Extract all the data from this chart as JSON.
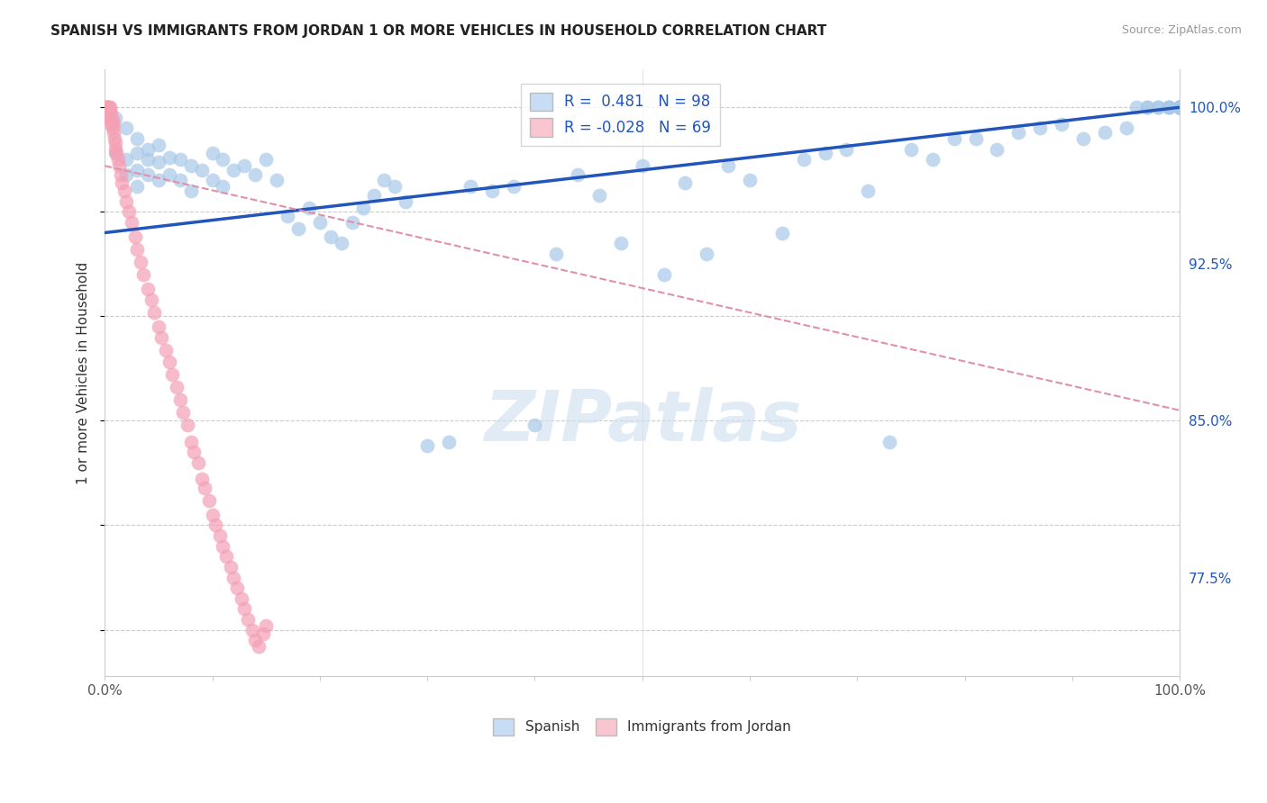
{
  "title": "SPANISH VS IMMIGRANTS FROM JORDAN 1 OR MORE VEHICLES IN HOUSEHOLD CORRELATION CHART",
  "source": "Source: ZipAtlas.com",
  "ylabel": "1 or more Vehicles in Household",
  "xlim": [
    0.0,
    1.0
  ],
  "ylim": [
    0.728,
    1.018
  ],
  "yticks": [
    0.775,
    0.85,
    0.925,
    1.0
  ],
  "ytick_labels": [
    "77.5%",
    "85.0%",
    "92.5%",
    "100.0%"
  ],
  "xticks": [
    0.0,
    0.1,
    0.2,
    0.3,
    0.4,
    0.5,
    0.6,
    0.7,
    0.8,
    0.9,
    1.0
  ],
  "xtick_labels": [
    "0.0%",
    "",
    "",
    "",
    "",
    "",
    "",
    "",
    "",
    "",
    "100.0%"
  ],
  "spanish_R": 0.481,
  "spanish_N": 98,
  "jordan_R": -0.028,
  "jordan_N": 69,
  "spanish_color": "#a8c8e8",
  "jordan_color": "#f4a0b5",
  "trendline_spanish_color": "#2255bb",
  "trendline_jordan_color": "#e090a8",
  "legend_box_color_spanish": "#c8ddf5",
  "legend_box_color_jordan": "#f9c5d0",
  "watermark_color": "#ccdff0",
  "spanish_x": [
    0.01,
    0.01,
    0.02,
    0.02,
    0.02,
    0.03,
    0.03,
    0.03,
    0.03,
    0.04,
    0.04,
    0.04,
    0.05,
    0.05,
    0.05,
    0.06,
    0.06,
    0.07,
    0.07,
    0.08,
    0.08,
    0.09,
    0.1,
    0.1,
    0.11,
    0.11,
    0.12,
    0.13,
    0.14,
    0.15,
    0.16,
    0.17,
    0.18,
    0.19,
    0.2,
    0.21,
    0.22,
    0.23,
    0.24,
    0.25,
    0.26,
    0.27,
    0.28,
    0.3,
    0.32,
    0.34,
    0.36,
    0.38,
    0.4,
    0.42,
    0.44,
    0.46,
    0.48,
    0.5,
    0.52,
    0.54,
    0.56,
    0.58,
    0.6,
    0.63,
    0.65,
    0.67,
    0.69,
    0.71,
    0.73,
    0.75,
    0.77,
    0.79,
    0.81,
    0.83,
    0.85,
    0.87,
    0.89,
    0.91,
    0.93,
    0.95,
    0.96,
    0.97,
    0.97,
    0.98,
    0.98,
    0.99,
    0.99,
    0.99,
    1.0,
    1.0,
    1.0,
    1.0,
    1.0,
    1.0,
    1.0,
    1.0,
    1.0,
    1.0,
    1.0,
    1.0,
    1.0,
    1.0
  ],
  "spanish_y": [
    0.978,
    0.995,
    0.975,
    0.99,
    0.968,
    0.985,
    0.978,
    0.97,
    0.962,
    0.98,
    0.975,
    0.968,
    0.982,
    0.974,
    0.965,
    0.976,
    0.968,
    0.975,
    0.965,
    0.972,
    0.96,
    0.97,
    0.978,
    0.965,
    0.975,
    0.962,
    0.97,
    0.972,
    0.968,
    0.975,
    0.965,
    0.948,
    0.942,
    0.952,
    0.945,
    0.938,
    0.935,
    0.945,
    0.952,
    0.958,
    0.965,
    0.962,
    0.955,
    0.838,
    0.84,
    0.962,
    0.96,
    0.962,
    0.848,
    0.93,
    0.968,
    0.958,
    0.935,
    0.972,
    0.92,
    0.964,
    0.93,
    0.972,
    0.965,
    0.94,
    0.975,
    0.978,
    0.98,
    0.96,
    0.84,
    0.98,
    0.975,
    0.985,
    0.985,
    0.98,
    0.988,
    0.99,
    0.992,
    0.985,
    0.988,
    0.99,
    1.0,
    1.0,
    1.0,
    1.0,
    1.0,
    1.0,
    1.0,
    1.0,
    1.0,
    1.0,
    1.0,
    1.0,
    1.0,
    1.0,
    1.0,
    1.0,
    1.0,
    1.0,
    1.0,
    1.0,
    1.0,
    1.0
  ],
  "jordan_x": [
    0.001,
    0.001,
    0.002,
    0.002,
    0.002,
    0.003,
    0.003,
    0.004,
    0.004,
    0.004,
    0.005,
    0.005,
    0.005,
    0.006,
    0.006,
    0.007,
    0.007,
    0.008,
    0.008,
    0.009,
    0.01,
    0.01,
    0.011,
    0.012,
    0.013,
    0.015,
    0.016,
    0.018,
    0.02,
    0.022,
    0.025,
    0.028,
    0.03,
    0.033,
    0.036,
    0.04,
    0.043,
    0.046,
    0.05,
    0.053,
    0.057,
    0.06,
    0.063,
    0.067,
    0.07,
    0.073,
    0.077,
    0.08,
    0.083,
    0.087,
    0.09,
    0.093,
    0.097,
    0.1,
    0.103,
    0.107,
    0.11,
    0.113,
    0.117,
    0.12,
    0.123,
    0.127,
    0.13,
    0.133,
    0.137,
    0.14,
    0.143,
    0.147,
    0.15
  ],
  "jordan_y": [
    1.0,
    1.0,
    1.0,
    1.0,
    0.998,
    1.0,
    0.998,
    0.998,
    1.0,
    0.996,
    1.0,
    0.998,
    0.994,
    0.997,
    0.992,
    0.994,
    0.99,
    0.992,
    0.988,
    0.985,
    0.983,
    0.98,
    0.978,
    0.975,
    0.972,
    0.968,
    0.964,
    0.96,
    0.955,
    0.95,
    0.945,
    0.938,
    0.932,
    0.926,
    0.92,
    0.913,
    0.908,
    0.902,
    0.895,
    0.89,
    0.884,
    0.878,
    0.872,
    0.866,
    0.86,
    0.854,
    0.848,
    0.84,
    0.835,
    0.83,
    0.822,
    0.818,
    0.812,
    0.805,
    0.8,
    0.795,
    0.79,
    0.785,
    0.78,
    0.775,
    0.77,
    0.765,
    0.76,
    0.755,
    0.75,
    0.745,
    0.742,
    0.748,
    0.752
  ],
  "trendline_jordan_x0": 0.0,
  "trendline_jordan_y0": 0.972,
  "trendline_jordan_x1": 1.0,
  "trendline_jordan_y1": 0.855,
  "trendline_spanish_x0": 0.0,
  "trendline_spanish_y0": 0.94,
  "trendline_spanish_x1": 1.0,
  "trendline_spanish_y1": 1.0
}
